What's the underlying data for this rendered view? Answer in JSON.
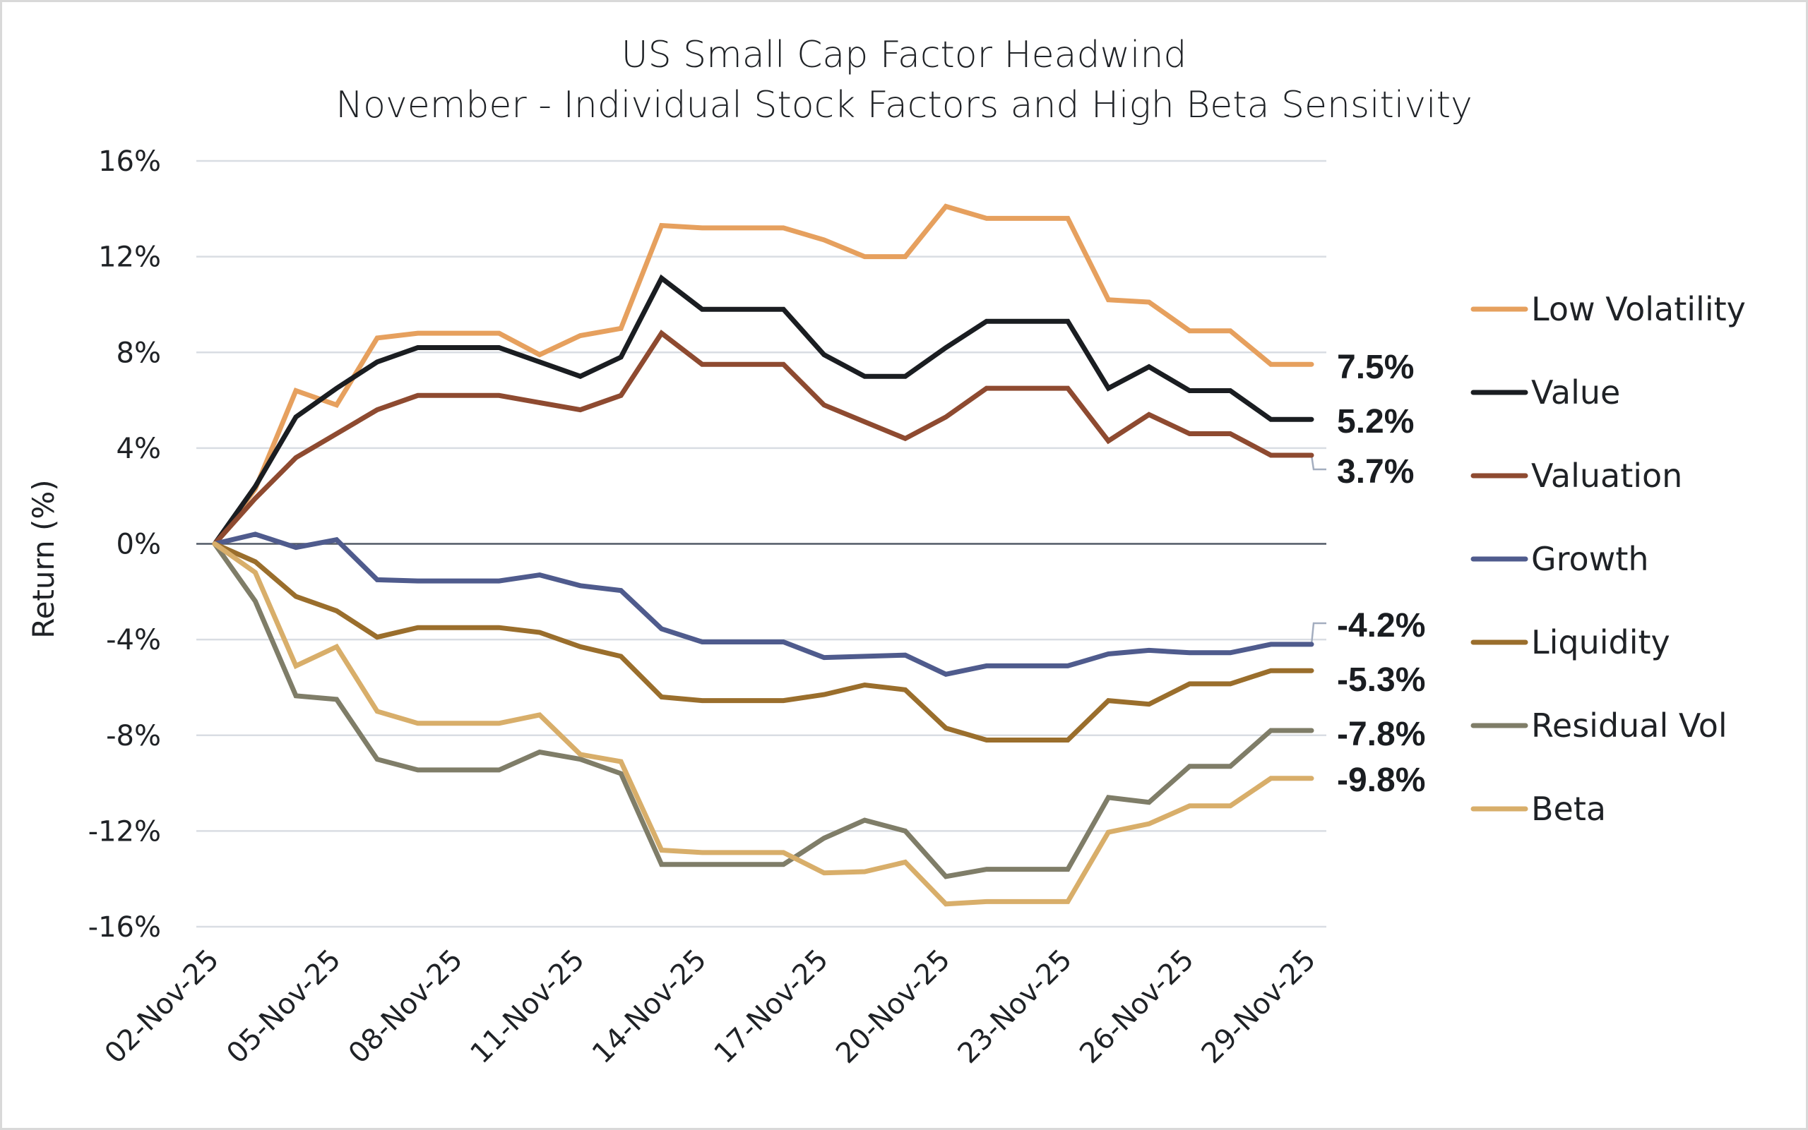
{
  "chart_data": {
    "type": "line",
    "title": "US Small Cap Factor Headwind",
    "subtitle": "November - Individual Stock Factors and High Beta Sensitivity",
    "xlabel": "",
    "ylabel": "Return (%)",
    "ylim": [
      -16,
      16
    ],
    "yticks": [
      16,
      12,
      8,
      4,
      0,
      -4,
      -8,
      -12,
      -16
    ],
    "ytick_labels": [
      "16%",
      "12%",
      "8%",
      "4%",
      "0%",
      "-4%",
      "-8%",
      "-12%",
      "-16%"
    ],
    "grid": true,
    "legend_position": "right",
    "x": [
      "02-Nov-25",
      "03-Nov-25",
      "04-Nov-25",
      "05-Nov-25",
      "06-Nov-25",
      "07-Nov-25",
      "08-Nov-25",
      "09-Nov-25",
      "10-Nov-25",
      "11-Nov-25",
      "12-Nov-25",
      "13-Nov-25",
      "14-Nov-25",
      "15-Nov-25",
      "16-Nov-25",
      "17-Nov-25",
      "18-Nov-25",
      "19-Nov-25",
      "20-Nov-25",
      "21-Nov-25",
      "22-Nov-25",
      "23-Nov-25",
      "24-Nov-25",
      "25-Nov-25",
      "26-Nov-25",
      "27-Nov-25",
      "28-Nov-25",
      "29-Nov-25"
    ],
    "xtick_labels": [
      "02-Nov-25",
      "05-Nov-25",
      "08-Nov-25",
      "11-Nov-25",
      "14-Nov-25",
      "17-Nov-25",
      "20-Nov-25",
      "23-Nov-25",
      "26-Nov-25",
      "29-Nov-25"
    ],
    "xtick_indices": [
      0,
      3,
      6,
      9,
      12,
      15,
      18,
      21,
      24,
      27
    ],
    "series": [
      {
        "name": "Low Volatility",
        "color": "#E6A05E",
        "end_label": "7.5%",
        "values": [
          0,
          2.3,
          6.4,
          5.8,
          8.6,
          8.8,
          8.8,
          8.8,
          7.9,
          8.7,
          9.0,
          13.3,
          13.2,
          13.2,
          13.2,
          12.7,
          12.0,
          12.0,
          14.1,
          13.6,
          13.6,
          13.6,
          10.2,
          10.1,
          8.9,
          8.9,
          7.5,
          7.5
        ]
      },
      {
        "name": "Value",
        "color": "#1A1D21",
        "end_label": "5.2%",
        "values": [
          0,
          2.4,
          5.3,
          6.5,
          7.6,
          8.2,
          8.2,
          8.2,
          7.6,
          7.0,
          7.8,
          11.1,
          9.8,
          9.8,
          9.8,
          7.9,
          7.0,
          7.0,
          8.2,
          9.3,
          9.3,
          9.3,
          6.5,
          7.4,
          6.4,
          6.4,
          5.2,
          5.2
        ]
      },
      {
        "name": "Valuation",
        "color": "#8E4A30",
        "end_label": "3.7%",
        "values": [
          0,
          1.9,
          3.6,
          4.6,
          5.6,
          6.2,
          6.2,
          6.2,
          5.9,
          5.6,
          6.2,
          8.8,
          7.5,
          7.5,
          7.5,
          5.8,
          5.1,
          4.4,
          5.3,
          6.5,
          6.5,
          6.5,
          4.3,
          5.4,
          4.6,
          4.6,
          3.7,
          3.7
        ]
      },
      {
        "name": "Growth",
        "color": "#4F5B8D",
        "end_label": "-4.2%",
        "values": [
          0,
          0.4,
          -0.15,
          0.17,
          -1.5,
          -1.55,
          -1.55,
          -1.55,
          -1.3,
          -1.75,
          -1.95,
          -3.55,
          -4.1,
          -4.1,
          -4.1,
          -4.75,
          -4.7,
          -4.65,
          -5.45,
          -5.1,
          -5.1,
          -5.1,
          -4.6,
          -4.45,
          -4.55,
          -4.55,
          -4.2,
          -4.2
        ]
      },
      {
        "name": "Liquidity",
        "color": "#9A6E2C",
        "end_label": "-5.3%",
        "values": [
          0,
          -0.75,
          -2.2,
          -2.8,
          -3.9,
          -3.5,
          -3.5,
          -3.5,
          -3.7,
          -4.3,
          -4.7,
          -6.4,
          -6.55,
          -6.55,
          -6.55,
          -6.3,
          -5.9,
          -6.1,
          -7.7,
          -8.2,
          -8.2,
          -8.2,
          -6.55,
          -6.7,
          -5.85,
          -5.85,
          -5.3,
          -5.3
        ]
      },
      {
        "name": "Residual Vol",
        "color": "#7F7D68",
        "end_label": "-7.8%",
        "values": [
          0,
          -2.4,
          -6.35,
          -6.5,
          -9.0,
          -9.45,
          -9.45,
          -9.45,
          -8.7,
          -9.0,
          -9.6,
          -13.4,
          -13.4,
          -13.4,
          -13.4,
          -12.3,
          -11.55,
          -12.0,
          -13.9,
          -13.6,
          -13.6,
          -13.6,
          -10.6,
          -10.8,
          -9.3,
          -9.3,
          -7.8,
          -7.8
        ]
      },
      {
        "name": "Beta",
        "color": "#D8AE6A",
        "end_label": "-9.8%",
        "values": [
          0,
          -1.2,
          -5.1,
          -4.3,
          -7.0,
          -7.5,
          -7.5,
          -7.5,
          -7.15,
          -8.8,
          -9.1,
          -12.8,
          -12.9,
          -12.9,
          -12.9,
          -13.75,
          -13.7,
          -13.3,
          -15.05,
          -14.95,
          -14.95,
          -14.95,
          -12.05,
          -11.7,
          -10.95,
          -10.95,
          -9.8,
          -9.8
        ]
      }
    ]
  }
}
